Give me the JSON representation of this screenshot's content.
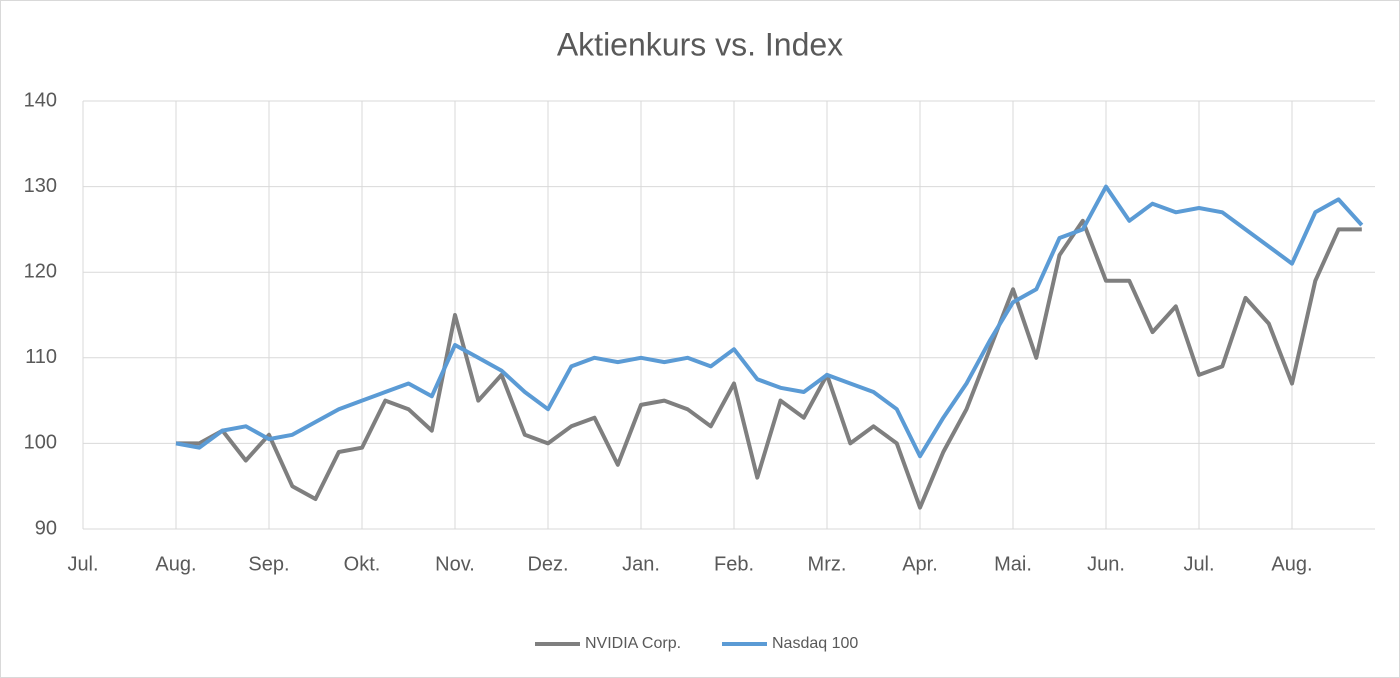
{
  "chart_data": {
    "type": "line",
    "title": "Aktienkurs vs. Index",
    "categories": [
      "Jul.",
      null,
      null,
      null,
      "Aug.",
      null,
      null,
      null,
      "Sep.",
      null,
      null,
      null,
      "Okt.",
      null,
      null,
      null,
      "Nov.",
      null,
      null,
      null,
      "Dez.",
      null,
      null,
      null,
      "Jan.",
      null,
      null,
      null,
      "Feb.",
      null,
      null,
      null,
      "Mrz.",
      null,
      null,
      null,
      "Apr.",
      null,
      null,
      null,
      "Mai.",
      null,
      null,
      null,
      "Jun.",
      null,
      null,
      null,
      "Jul.",
      null,
      null,
      null,
      "Aug.",
      null,
      null,
      null
    ],
    "series": [
      {
        "name": "NVIDIA Corp.",
        "color": "#7f7f7f",
        "values": [
          null,
          null,
          null,
          null,
          100,
          100,
          101.5,
          98,
          101,
          95,
          93.5,
          99,
          99.5,
          105,
          104,
          101.5,
          115,
          105,
          108,
          101,
          100,
          102,
          103,
          97.5,
          104.5,
          105,
          104,
          102,
          107,
          96,
          105,
          103,
          108,
          100,
          102,
          100,
          92.5,
          99,
          104,
          111,
          118,
          110,
          122,
          126,
          119,
          119,
          113,
          116,
          108,
          109,
          117,
          114,
          107,
          119,
          125,
          125
        ]
      },
      {
        "name": "Nasdaq 100",
        "color": "#5b9bd5",
        "values": [
          null,
          null,
          null,
          null,
          100,
          99.5,
          101.5,
          102,
          100.5,
          101,
          102.5,
          104,
          105,
          106,
          107,
          105.5,
          111.5,
          110,
          108.5,
          106,
          104,
          109,
          110,
          109.5,
          110,
          109.5,
          110,
          109,
          111,
          107.5,
          106.5,
          106,
          108,
          107,
          106,
          104,
          98.5,
          103,
          107,
          112,
          116.5,
          118,
          124,
          125,
          130,
          126,
          128,
          127,
          127.5,
          127,
          125,
          123,
          121,
          127,
          128.5,
          125.5
        ]
      }
    ],
    "ylim": [
      90,
      140
    ],
    "yticks": [
      90,
      100,
      110,
      120,
      130,
      140
    ],
    "grid": true,
    "legend": "bottom"
  }
}
